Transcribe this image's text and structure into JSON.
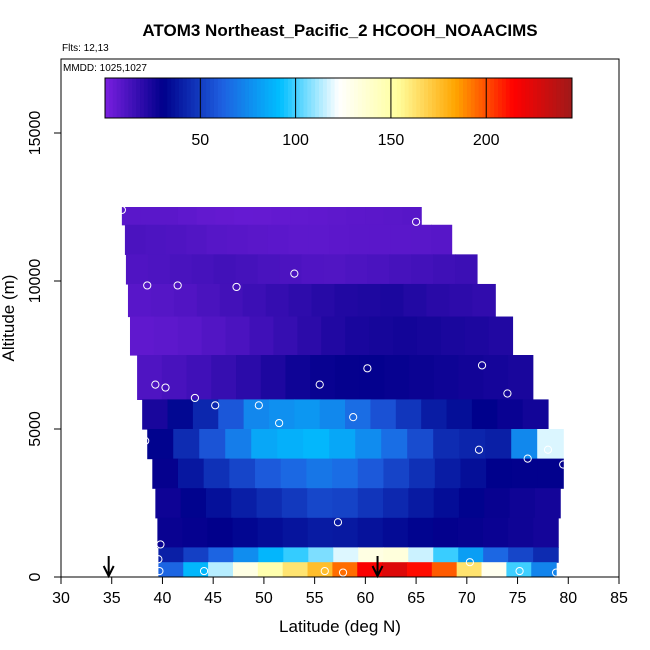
{
  "chart_data": {
    "type": "heatmap",
    "title": "ATOM3 Northeast_Pacific_2 HCOOH_NOAACIMS",
    "annotations": [
      "Flts: 12,13",
      "MMDD: 1025,1027"
    ],
    "xlabel": "Latitude (deg N)",
    "ylabel": "Altitude (m)",
    "xlim": [
      30,
      85
    ],
    "ylim": [
      0,
      17500
    ],
    "x_ticks": [
      30,
      35,
      40,
      45,
      50,
      55,
      60,
      65,
      70,
      75,
      80,
      85
    ],
    "y_ticks": [
      0,
      5000,
      10000,
      15000
    ],
    "colorbar": {
      "range": [
        0,
        245
      ],
      "ticks": [
        50,
        100,
        150,
        200
      ],
      "colors": [
        "#7a1fe0",
        "#00008b",
        "#1e5fe0",
        "#00bfff",
        "#ffffff",
        "#ffffa0",
        "#ffa500",
        "#ff0000",
        "#a01a1a"
      ]
    },
    "arrows_at_latitude": [
      34.7,
      61.2
    ],
    "profile_bands": [
      {
        "alt": [
          11900,
          12500
        ],
        "lat": [
          36.0,
          65.5
        ],
        "values": [
          8,
          8,
          6,
          5,
          6,
          7,
          8,
          9
        ]
      },
      {
        "alt": [
          10900,
          11900
        ],
        "lat": [
          36.3,
          68.5
        ],
        "values": [
          12,
          11,
          9,
          8,
          7,
          8,
          8,
          9
        ]
      },
      {
        "alt": [
          9900,
          10900
        ],
        "lat": [
          36.4,
          71.0
        ],
        "values": [
          10,
          12,
          14,
          12,
          10,
          12,
          14,
          16
        ]
      },
      {
        "alt": [
          8800,
          9900
        ],
        "lat": [
          36.6,
          72.8
        ],
        "values": [
          8,
          10,
          14,
          18,
          22,
          24,
          20,
          18
        ]
      },
      {
        "alt": [
          7500,
          8800
        ],
        "lat": [
          36.8,
          74.5
        ],
        "values": [
          6,
          8,
          12,
          18,
          24,
          26,
          24,
          22
        ]
      },
      {
        "alt": [
          6000,
          7500
        ],
        "lat": [
          37.5,
          76.5
        ],
        "values": [
          10,
          14,
          20,
          28,
          30,
          28,
          26,
          24
        ]
      },
      {
        "alt": [
          5000,
          6000
        ],
        "lat": [
          38.0,
          78.0
        ],
        "values": [
          20,
          40,
          75,
          80,
          60,
          40,
          30,
          25
        ]
      },
      {
        "alt": [
          4000,
          5000
        ],
        "lat": [
          38.5,
          79.5
        ],
        "values": [
          25,
          55,
          85,
          90,
          70,
          45,
          40,
          140
        ]
      },
      {
        "alt": [
          3000,
          4000
        ],
        "lat": [
          39.0,
          79.5
        ],
        "values": [
          25,
          45,
          60,
          70,
          55,
          40,
          30,
          30
        ]
      },
      {
        "alt": [
          2000,
          3000
        ],
        "lat": [
          39.3,
          79.2
        ],
        "values": [
          25,
          35,
          45,
          55,
          45,
          35,
          28,
          25
        ]
      },
      {
        "alt": [
          1000,
          2000
        ],
        "lat": [
          39.5,
          79.0
        ],
        "values": [
          28,
          30,
          35,
          40,
          35,
          30,
          28,
          25
        ]
      },
      {
        "alt": [
          500,
          1000
        ],
        "lat": [
          39.6,
          79.0
        ],
        "values": [
          35,
          60,
          90,
          110,
          140,
          100,
          60,
          40
        ]
      },
      {
        "alt": [
          0,
          500
        ],
        "lat": [
          39.6,
          78.8
        ],
        "values": [
          50,
          110,
          150,
          180,
          230,
          200,
          120,
          60
        ]
      }
    ],
    "sample_points": [
      {
        "lat": 36.0,
        "alt": 12400
      },
      {
        "lat": 65.0,
        "alt": 12000
      },
      {
        "lat": 38.5,
        "alt": 9850
      },
      {
        "lat": 41.5,
        "alt": 9850
      },
      {
        "lat": 47.3,
        "alt": 9800
      },
      {
        "lat": 53.0,
        "alt": 10250
      },
      {
        "lat": 72.0,
        "alt": 10300
      },
      {
        "lat": 37.0,
        "alt": 7150
      },
      {
        "lat": 60.2,
        "alt": 7050
      },
      {
        "lat": 71.5,
        "alt": 7150
      },
      {
        "lat": 77.0,
        "alt": 7400
      },
      {
        "lat": 39.3,
        "alt": 6500
      },
      {
        "lat": 40.3,
        "alt": 6400
      },
      {
        "lat": 43.2,
        "alt": 6050
      },
      {
        "lat": 45.2,
        "alt": 5800
      },
      {
        "lat": 49.5,
        "alt": 5800
      },
      {
        "lat": 55.5,
        "alt": 6500
      },
      {
        "lat": 74.0,
        "alt": 6200
      },
      {
        "lat": 51.5,
        "alt": 5200
      },
      {
        "lat": 58.8,
        "alt": 5400
      },
      {
        "lat": 38.3,
        "alt": 4600
      },
      {
        "lat": 71.2,
        "alt": 4300
      },
      {
        "lat": 78.0,
        "alt": 4300
      },
      {
        "lat": 76.0,
        "alt": 4000
      },
      {
        "lat": 79.5,
        "alt": 3800
      },
      {
        "lat": 57.3,
        "alt": 1850
      },
      {
        "lat": 39.8,
        "alt": 1100
      },
      {
        "lat": 39.6,
        "alt": 600
      },
      {
        "lat": 70.3,
        "alt": 500
      },
      {
        "lat": 39.7,
        "alt": 200
      },
      {
        "lat": 44.1,
        "alt": 200
      },
      {
        "lat": 56.0,
        "alt": 200
      },
      {
        "lat": 57.8,
        "alt": 150
      },
      {
        "lat": 75.2,
        "alt": 200
      },
      {
        "lat": 78.8,
        "alt": 150
      }
    ]
  }
}
